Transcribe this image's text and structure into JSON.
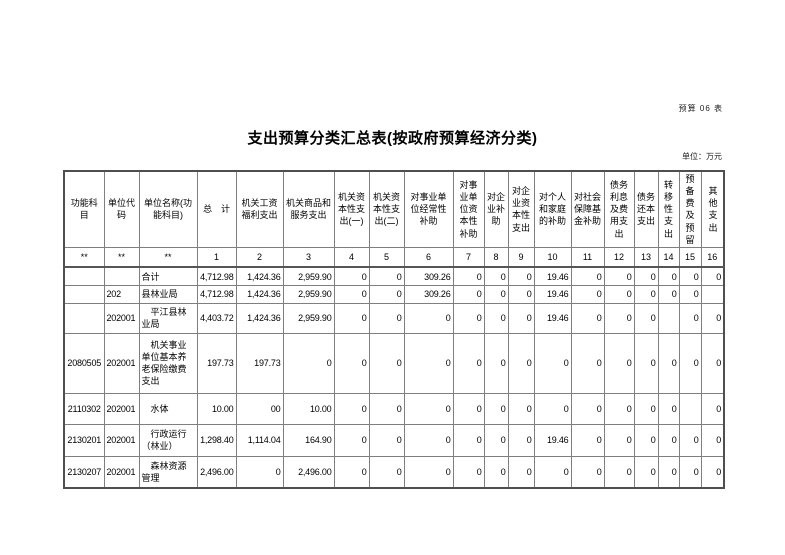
{
  "page": {
    "doc_label": "预算 06 表",
    "title": "支出预算分类汇总表(按政府预算经济分类)",
    "unit_note": "单位：万元"
  },
  "table": {
    "column_headers": [
      "功能科目",
      "单位代码",
      "单位名称(功能科目)",
      "总　计",
      "机关工资福利支出",
      "机关商品和服务支出",
      "机关资本性支出(一)",
      "机关资本性支出(二)",
      "对事业单位经常性补助",
      "对事业单位资本性补助",
      "对企业补助",
      "对企业资本性支出",
      "对个人和家庭的补助",
      "对社会保障基金补助",
      "债务利息及费用支出",
      "债务还本支出",
      "转移性支出",
      "预备费及预留",
      "其他支出"
    ],
    "index_row": [
      "**",
      "**",
      "**",
      "1",
      "2",
      "3",
      "4",
      "5",
      "6",
      "7",
      "8",
      "9",
      "10",
      "11",
      "12",
      "13",
      "14",
      "15",
      "16"
    ],
    "rows": [
      [
        "",
        "",
        "合计",
        "4,712.98",
        "1,424.36",
        "2,959.90",
        "0",
        "0",
        "309.26",
        "0",
        "0",
        "0",
        "19.46",
        "0",
        "0",
        "0",
        "0",
        "0",
        "0"
      ],
      [
        "",
        "202",
        "县林业局",
        "4,712.98",
        "1,424.36",
        "2,959.90",
        "0",
        "0",
        "309.26",
        "0",
        "0",
        "0",
        "19.46",
        "0",
        "0",
        "0",
        "0",
        "0",
        ""
      ],
      [
        "",
        "202001",
        "　平江县林业局",
        "4,403.72",
        "1,424.36",
        "2,959.90",
        "0",
        "0",
        "0",
        "0",
        "0",
        "0",
        "19.46",
        "0",
        "0",
        "0",
        "",
        "0",
        "0"
      ],
      [
        "2080505",
        "202001",
        "　机关事业单位基本养老保险缴费支出",
        "197.73",
        "197.73",
        "0",
        "0",
        "0",
        "0",
        "0",
        "0",
        "0",
        "0",
        "0",
        "0",
        "0",
        "0",
        "0",
        "0"
      ],
      [
        "2110302",
        "202001",
        "　水体",
        "10.00",
        "00",
        "10.00",
        "0",
        "0",
        "0",
        "0",
        "0",
        "0",
        "0",
        "0",
        "0",
        "0",
        "0",
        "",
        "0"
      ],
      [
        "2130201",
        "202001",
        "　行政运行（林业）",
        "1,298.40",
        "1,114.04",
        "164.90",
        "0",
        "0",
        "0",
        "0",
        "0",
        "0",
        "19.46",
        "0",
        "0",
        "0",
        "0",
        "0",
        "0"
      ],
      [
        "2130207",
        "202001",
        "　森林资源管理",
        "2,496.00",
        "0",
        "2,496.00",
        "0",
        "0",
        "0",
        "0",
        "0",
        "0",
        "0",
        "0",
        "0",
        "0",
        "0",
        "0",
        "0"
      ]
    ]
  }
}
